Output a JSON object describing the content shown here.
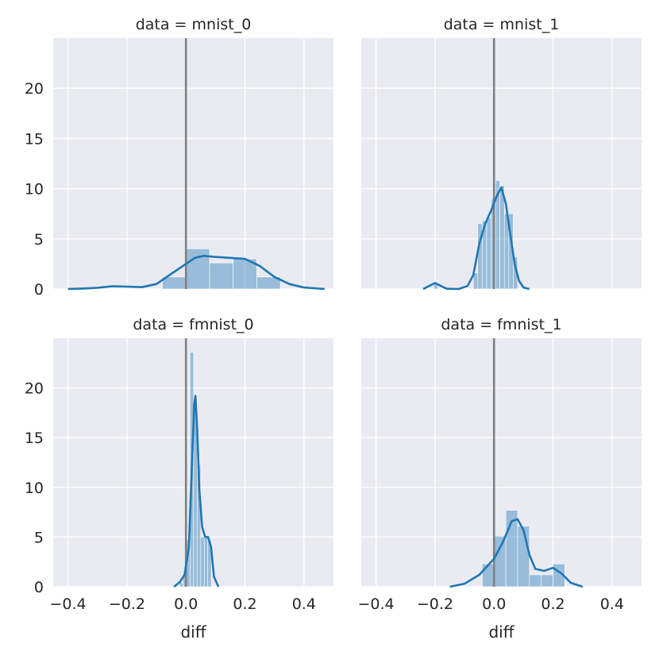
{
  "chart_data": {
    "type": "histogram+kde facet grid",
    "x_label": "diff",
    "xlim": [
      -0.45,
      0.5
    ],
    "ylim": [
      0,
      25
    ],
    "x_ticks": [
      -0.4,
      -0.2,
      0.0,
      0.2,
      0.4
    ],
    "x_tick_labels": [
      "−0.4",
      "−0.2",
      "0.0",
      "0.2",
      "0.4"
    ],
    "y_ticks": [
      0,
      5,
      10,
      15,
      20
    ],
    "y_tick_labels": [
      "0",
      "5",
      "10",
      "15",
      "20"
    ],
    "reference_line_x": 0.0,
    "colors": {
      "bars": "#1f77b4",
      "kde": "#1f77b4",
      "reference_line": "#808080",
      "panel_background": "#eaeaf2"
    },
    "panels": [
      {
        "title": "data = mnist_0",
        "bins": [
          {
            "x0": -0.08,
            "x1": -0.0,
            "h": 1.2
          },
          {
            "x0": 0.0,
            "x1": 0.08,
            "h": 4.0
          },
          {
            "x0": 0.08,
            "x1": 0.16,
            "h": 2.6
          },
          {
            "x0": 0.16,
            "x1": 0.24,
            "h": 3.0
          },
          {
            "x0": 0.24,
            "x1": 0.32,
            "h": 1.2
          }
        ],
        "kde": [
          [
            -0.4,
            0.0
          ],
          [
            -0.35,
            0.05
          ],
          [
            -0.3,
            0.12
          ],
          [
            -0.25,
            0.28
          ],
          [
            -0.2,
            0.24
          ],
          [
            -0.15,
            0.18
          ],
          [
            -0.1,
            0.5
          ],
          [
            -0.05,
            1.5
          ],
          [
            0.0,
            2.5
          ],
          [
            0.03,
            3.1
          ],
          [
            0.06,
            3.3
          ],
          [
            0.1,
            3.2
          ],
          [
            0.15,
            3.1
          ],
          [
            0.2,
            3.0
          ],
          [
            0.25,
            2.3
          ],
          [
            0.3,
            1.2
          ],
          [
            0.35,
            0.5
          ],
          [
            0.4,
            0.15
          ],
          [
            0.47,
            0.0
          ]
        ]
      },
      {
        "title": "data = mnist_1",
        "bins": [
          {
            "x0": -0.205,
            "x1": -0.19,
            "h": 0.6
          },
          {
            "x0": -0.07,
            "x1": -0.055,
            "h": 1.6
          },
          {
            "x0": -0.055,
            "x1": -0.04,
            "h": 6.5
          },
          {
            "x0": -0.04,
            "x1": -0.025,
            "h": 6.8
          },
          {
            "x0": -0.025,
            "x1": -0.01,
            "h": 7.1
          },
          {
            "x0": -0.01,
            "x1": 0.005,
            "h": 9.0
          },
          {
            "x0": 0.005,
            "x1": 0.02,
            "h": 10.8
          },
          {
            "x0": 0.02,
            "x1": 0.035,
            "h": 10.3
          },
          {
            "x0": 0.035,
            "x1": 0.05,
            "h": 7.5
          },
          {
            "x0": 0.05,
            "x1": 0.065,
            "h": 7.5
          },
          {
            "x0": 0.065,
            "x1": 0.08,
            "h": 3.2
          }
        ],
        "kde": [
          [
            -0.24,
            0.0
          ],
          [
            -0.22,
            0.3
          ],
          [
            -0.2,
            0.6
          ],
          [
            -0.18,
            0.3
          ],
          [
            -0.16,
            0.02
          ],
          [
            -0.12,
            0.0
          ],
          [
            -0.09,
            0.3
          ],
          [
            -0.07,
            1.4
          ],
          [
            -0.05,
            4.5
          ],
          [
            -0.03,
            6.5
          ],
          [
            -0.01,
            7.8
          ],
          [
            0.01,
            9.3
          ],
          [
            0.025,
            10.1
          ],
          [
            0.04,
            8.5
          ],
          [
            0.055,
            5.5
          ],
          [
            0.07,
            2.5
          ],
          [
            0.085,
            0.8
          ],
          [
            0.1,
            0.15
          ],
          [
            0.12,
            0.0
          ]
        ]
      },
      {
        "title": "data = fmnist_0",
        "bins": [
          {
            "x0": -0.022,
            "x1": -0.01,
            "h": 0.4
          },
          {
            "x0": -0.01,
            "x1": 0.002,
            "h": 1.3
          },
          {
            "x0": 0.002,
            "x1": 0.014,
            "h": 4.7
          },
          {
            "x0": 0.014,
            "x1": 0.026,
            "h": 23.6
          },
          {
            "x0": 0.026,
            "x1": 0.038,
            "h": 19.0
          },
          {
            "x0": 0.038,
            "x1": 0.05,
            "h": 12.3
          },
          {
            "x0": 0.05,
            "x1": 0.062,
            "h": 5.0
          },
          {
            "x0": 0.062,
            "x1": 0.074,
            "h": 4.9
          },
          {
            "x0": 0.074,
            "x1": 0.086,
            "h": 4.7
          }
        ],
        "kde": [
          [
            -0.04,
            0.0
          ],
          [
            -0.02,
            0.5
          ],
          [
            -0.005,
            1.2
          ],
          [
            0.01,
            4.0
          ],
          [
            0.02,
            12.0
          ],
          [
            0.028,
            18.3
          ],
          [
            0.032,
            19.2
          ],
          [
            0.038,
            16.0
          ],
          [
            0.045,
            10.0
          ],
          [
            0.055,
            6.0
          ],
          [
            0.065,
            5.0
          ],
          [
            0.075,
            5.0
          ],
          [
            0.085,
            4.0
          ],
          [
            0.095,
            1.0
          ],
          [
            0.11,
            0.0
          ]
        ]
      },
      {
        "title": "data = fmnist_1",
        "bins": [
          {
            "x0": -0.04,
            "x1": -0.0,
            "h": 2.3
          },
          {
            "x0": -0.0,
            "x1": 0.04,
            "h": 5.1
          },
          {
            "x0": 0.04,
            "x1": 0.08,
            "h": 7.7
          },
          {
            "x0": 0.08,
            "x1": 0.12,
            "h": 6.1
          },
          {
            "x0": 0.12,
            "x1": 0.16,
            "h": 1.2
          },
          {
            "x0": 0.16,
            "x1": 0.2,
            "h": 1.2
          },
          {
            "x0": 0.2,
            "x1": 0.24,
            "h": 2.3
          }
        ],
        "kde": [
          [
            -0.15,
            0.0
          ],
          [
            -0.1,
            0.3
          ],
          [
            -0.05,
            1.2
          ],
          [
            0.0,
            2.8
          ],
          [
            0.03,
            4.5
          ],
          [
            0.06,
            6.6
          ],
          [
            0.08,
            6.8
          ],
          [
            0.1,
            5.7
          ],
          [
            0.12,
            3.2
          ],
          [
            0.14,
            1.8
          ],
          [
            0.17,
            1.6
          ],
          [
            0.2,
            1.9
          ],
          [
            0.23,
            1.3
          ],
          [
            0.26,
            0.4
          ],
          [
            0.3,
            0.0
          ]
        ]
      }
    ]
  }
}
